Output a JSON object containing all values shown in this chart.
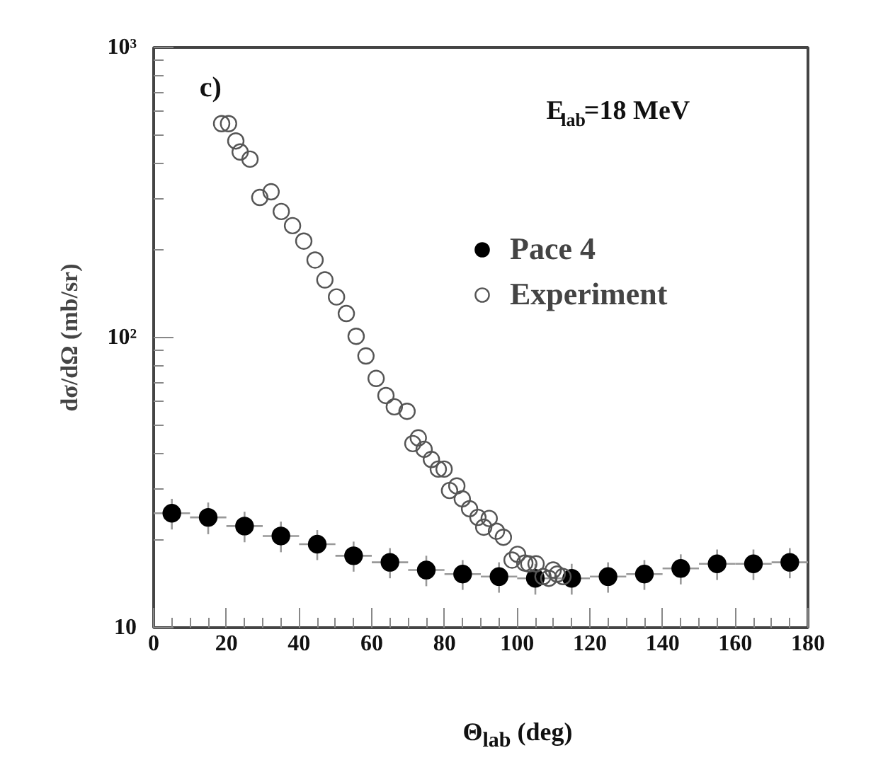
{
  "chart_data": {
    "type": "scatter",
    "xlabel": "Θ$_{lab}$ (deg)",
    "ylabel": "dσ/dΩ (mb/sr)",
    "annotations": [
      "c)",
      "E$_{lab}$=18 MeV"
    ],
    "xlim": [
      0,
      180
    ],
    "xticks": [
      0,
      20,
      40,
      60,
      80,
      100,
      120,
      140,
      160,
      180
    ],
    "ylim": [
      10,
      1000
    ],
    "yticks": [
      {
        "value": 10,
        "label": "10"
      },
      {
        "value": 100,
        "label": "10²"
      },
      {
        "value": 1000,
        "label": "10³"
      }
    ],
    "log": "y",
    "grid": false,
    "legend": "top right",
    "marker": "circle",
    "series": [
      {
        "name": "Pace 4",
        "color": "#000000",
        "x": [
          5,
          15,
          25,
          35,
          45,
          55,
          65,
          75,
          85,
          95,
          105,
          115,
          125,
          135,
          145,
          155,
          165,
          175
        ],
        "values": [
          24.8,
          24,
          22.4,
          20.7,
          19.4,
          17.7,
          16.8,
          15.8,
          15.3,
          15.0,
          14.8,
          14.8,
          15.0,
          15.3,
          16.0,
          16.6,
          16.6,
          16.8
        ],
        "errors": [
          3,
          3,
          2.7,
          2.5,
          2.3,
          2.1,
          2,
          1.9,
          1.8,
          1.8,
          1.8,
          1.8,
          1.8,
          1.8,
          1.9,
          2,
          2,
          2
        ],
        "xerrors": [
          5,
          5,
          5,
          5,
          5,
          5,
          5,
          5,
          5,
          5,
          5,
          5,
          5,
          5,
          5,
          5,
          5,
          5
        ]
      },
      {
        "name": "Experiment",
        "color": "#555555",
        "x": [
          18.7,
          20.6,
          22.6,
          23.8,
          26.5,
          29.2,
          32.3,
          35.1,
          38.2,
          41.3,
          44.4,
          47.1,
          50.3,
          53.0,
          55.7,
          58.4,
          61.2,
          63.9,
          66.2,
          69.7,
          71.3,
          72.8,
          74.4,
          76.4,
          78.3,
          79.9,
          81.4,
          83.4,
          84.9,
          86.9,
          89.2,
          90.8,
          92.3,
          94.3,
          96.2,
          98.6,
          100.1,
          102.1,
          103.2,
          105.2,
          107.1,
          108.7,
          109.9,
          111.0,
          112.6
        ],
        "values": [
          546,
          546,
          476,
          436,
          412,
          304,
          318,
          272,
          243,
          215,
          185,
          158,
          138,
          121,
          101,
          86.4,
          72.3,
          63.1,
          57.7,
          55.7,
          43.1,
          45.1,
          41.2,
          38.0,
          35.2,
          35.2,
          29.7,
          30.8,
          27.8,
          25.7,
          24.0,
          22.2,
          23.8,
          21.5,
          20.5,
          17.1,
          17.9,
          16.7,
          16.6,
          16.6,
          15.0,
          14.8,
          15.8,
          15.3,
          15.0
        ]
      }
    ]
  }
}
